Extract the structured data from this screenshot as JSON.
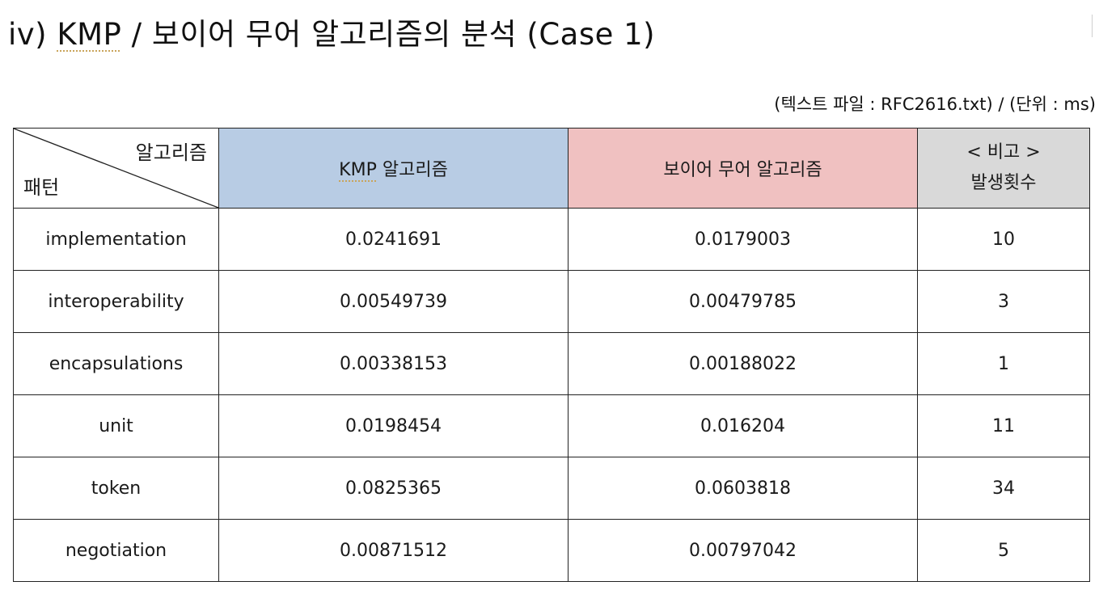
{
  "title": {
    "prefix": "iv) ",
    "kmp": "KMP",
    "rest": " / 보이어 무어 알고리즘의 분석 (Case 1)"
  },
  "subtitle": "(텍스트 파일 : RFC2616.txt) / (단위 : ms)",
  "table": {
    "header": {
      "diagonal_top": "알고리즘",
      "diagonal_bottom": "패턴",
      "kmp_prefix": "KMP",
      "kmp_suffix": " 알고리즘",
      "boyer_moore": "보이어 무어 알고리즘",
      "note_line1": "< 비고 >",
      "note_line2": "발생횟수"
    },
    "rows": [
      {
        "pattern": "implementation",
        "kmp": "0.0241691",
        "bm": "0.0179003",
        "count": "10"
      },
      {
        "pattern": "interoperability",
        "kmp": "0.00549739",
        "bm": "0.00479785",
        "count": "3"
      },
      {
        "pattern": "encapsulations",
        "kmp": "0.00338153",
        "bm": "0.00188022",
        "count": "1"
      },
      {
        "pattern": "unit",
        "kmp": "0.0198454",
        "bm": "0.016204",
        "count": "11"
      },
      {
        "pattern": "token",
        "kmp": "0.0825365",
        "bm": "0.0603818",
        "count": "34"
      },
      {
        "pattern": "negotiation",
        "kmp": "0.00871512",
        "bm": "0.00797042",
        "count": "5"
      }
    ]
  },
  "colors": {
    "kmp_header_bg": "#b8cce4",
    "bm_header_bg": "#f0c1c1",
    "note_header_bg": "#d9d9d9"
  }
}
